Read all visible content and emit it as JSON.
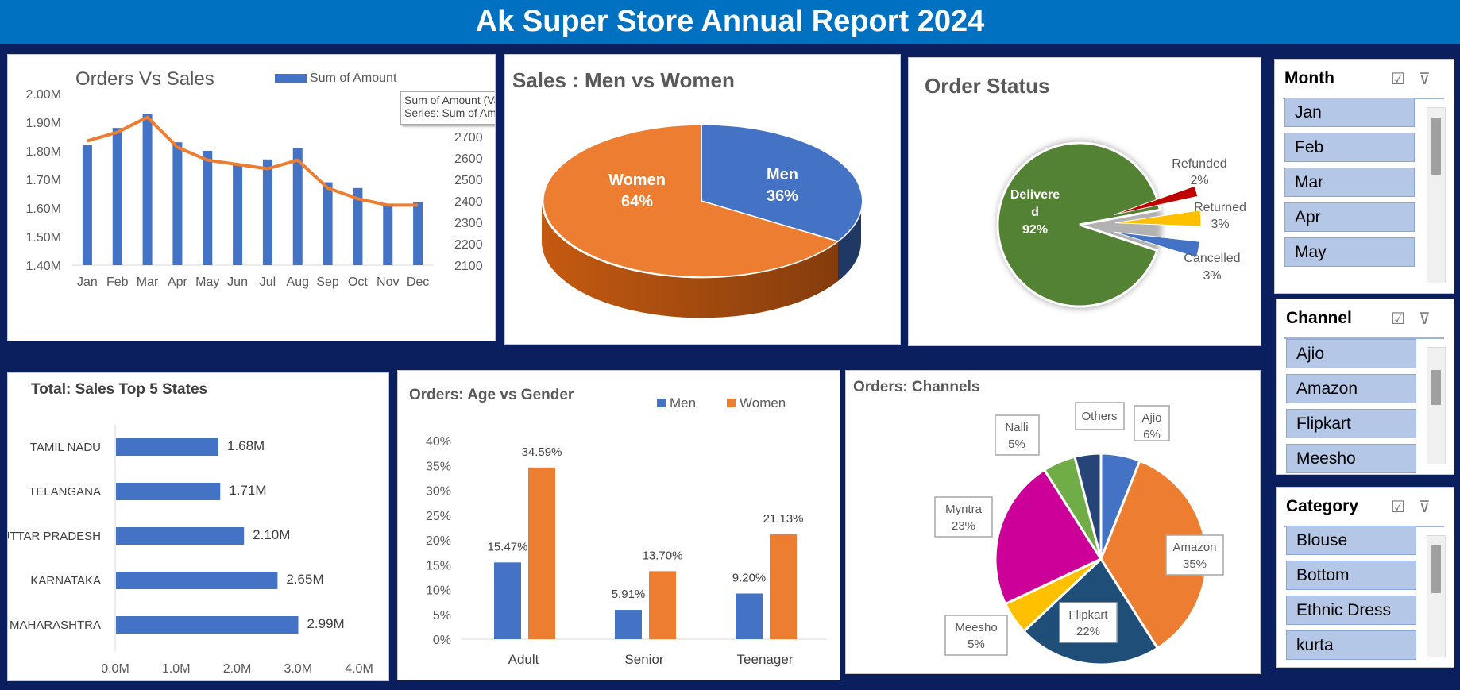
{
  "report": {
    "title": "Ak Super Store Annual Report 2024"
  },
  "colors": {
    "blue": "#4472c4",
    "orange": "#ed7d31",
    "green": "#548235",
    "red": "#c00000",
    "gold": "#ffc000",
    "magenta": "#cc0099",
    "navy": "#264478",
    "lightgreen": "#70ad47",
    "darkblue": "#1f4e79",
    "background": "#0b1f5e",
    "header": "#0070c0"
  },
  "orders_vs_sales": {
    "title": "Orders Vs Sales",
    "legend": "Sum of Amount",
    "tooltip_line1": "Sum of Amount (Values)",
    "tooltip_line2": "Series: Sum of Amount"
  },
  "sales_gender": {
    "title": "Sales : Men vs Women",
    "men_label": "Men",
    "men_value": "36%",
    "women_label": "Women",
    "women_value": "64%"
  },
  "order_status": {
    "title": "Order Status",
    "delivered_label1": "Delivere",
    "delivered_label2": "d",
    "delivered_value": "92%",
    "refunded_label": "Refunded",
    "refunded_value": "2%",
    "returned_label": "Returned",
    "returned_value": "3%",
    "cancelled_label": "Cancelled",
    "cancelled_value": "3%"
  },
  "top_states": {
    "title": "Total: Sales Top 5 States"
  },
  "age_gender": {
    "title": "Orders: Age vs Gender",
    "legend_men": "Men",
    "legend_women": "Women"
  },
  "channels_chart": {
    "title": "Orders: Channels",
    "labels": [
      {
        "name": "Ajio",
        "value": "6%"
      },
      {
        "name": "Amazon",
        "value": "35%"
      },
      {
        "name": "Flipkart",
        "value": "22%"
      },
      {
        "name": "Meesho",
        "value": "5%"
      },
      {
        "name": "Myntra",
        "value": "23%"
      },
      {
        "name": "Nalli",
        "value": "5%"
      },
      {
        "name": "Others",
        "value": ""
      }
    ]
  },
  "slicers": {
    "month": {
      "title": "Month",
      "items": [
        "Jan",
        "Feb",
        "Mar",
        "Apr",
        "May"
      ]
    },
    "channel": {
      "title": "Channel",
      "items": [
        "Ajio",
        "Amazon",
        "Flipkart",
        "Meesho"
      ]
    },
    "category": {
      "title": "Category",
      "items": [
        "Blouse",
        "Bottom",
        "Ethnic Dress",
        "kurta"
      ]
    }
  },
  "chart_data": [
    {
      "type": "bar",
      "title": "Orders Vs Sales",
      "categories": [
        "Jan",
        "Feb",
        "Mar",
        "Apr",
        "May",
        "Jun",
        "Jul",
        "Aug",
        "Sep",
        "Oct",
        "Nov",
        "Dec"
      ],
      "series": [
        {
          "name": "Sum of Amount",
          "values": [
            1.82,
            1.88,
            1.93,
            1.83,
            1.8,
            1.75,
            1.77,
            1.81,
            1.69,
            1.67,
            1.61,
            1.62
          ]
        },
        {
          "values": [
            2680,
            2720,
            2790,
            2650,
            2590,
            2570,
            2550,
            2590,
            2460,
            2410,
            2380,
            2380
          ]
        }
      ],
      "ylim": [
        1.4,
        2.0
      ],
      "yticks": [
        "1.40M",
        "1.50M",
        "1.60M",
        "1.70M",
        "1.80M",
        "1.90M",
        "2.00M"
      ],
      "y2lim": [
        2100,
        2900
      ],
      "y2ticks": [
        "2100",
        "2200",
        "2300",
        "2400",
        "2500",
        "2600",
        "2700"
      ]
    },
    {
      "type": "pie",
      "title": "Sales : Men vs Women",
      "categories": [
        "Men",
        "Women"
      ],
      "values": [
        36,
        64
      ]
    },
    {
      "type": "pie",
      "title": "Order Status",
      "categories": [
        "Delivered",
        "Refunded",
        "Returned",
        "Cancelled"
      ],
      "values": [
        92,
        2,
        3,
        3
      ]
    },
    {
      "type": "bar",
      "title": "Total: Sales Top 5 States",
      "categories": [
        "TAMIL NADU",
        "TELANGANA",
        "UTTAR PRADESH",
        "KARNATAKA",
        "MAHARASHTRA"
      ],
      "values": [
        1.68,
        1.71,
        2.1,
        2.65,
        2.99
      ],
      "data_labels": [
        "1.68M",
        "1.71M",
        "2.10M",
        "2.65M",
        "2.99M"
      ],
      "xticks": [
        "0.0M",
        "1.0M",
        "2.0M",
        "3.0M",
        "4.0M"
      ],
      "xlim": [
        0,
        4
      ]
    },
    {
      "type": "bar",
      "title": "Orders: Age vs Gender",
      "categories": [
        "Adult",
        "Senior",
        "Teenager"
      ],
      "series": [
        {
          "name": "Men",
          "values": [
            15.47,
            5.91,
            9.2
          ],
          "labels": [
            "15.47%",
            "5.91%",
            "9.20%"
          ]
        },
        {
          "name": "Women",
          "values": [
            34.59,
            13.7,
            21.13
          ],
          "labels": [
            "34.59%",
            "13.70%",
            "21.13%"
          ]
        }
      ],
      "yticks": [
        "0%",
        "5%",
        "10%",
        "15%",
        "20%",
        "25%",
        "30%",
        "35%",
        "40%"
      ],
      "ylim": [
        0,
        40
      ]
    },
    {
      "type": "pie",
      "title": "Orders: Channels",
      "categories": [
        "Ajio",
        "Amazon",
        "Flipkart",
        "Meesho",
        "Myntra",
        "Nalli",
        "Others"
      ],
      "values": [
        6,
        35,
        22,
        5,
        23,
        5,
        4
      ]
    }
  ]
}
